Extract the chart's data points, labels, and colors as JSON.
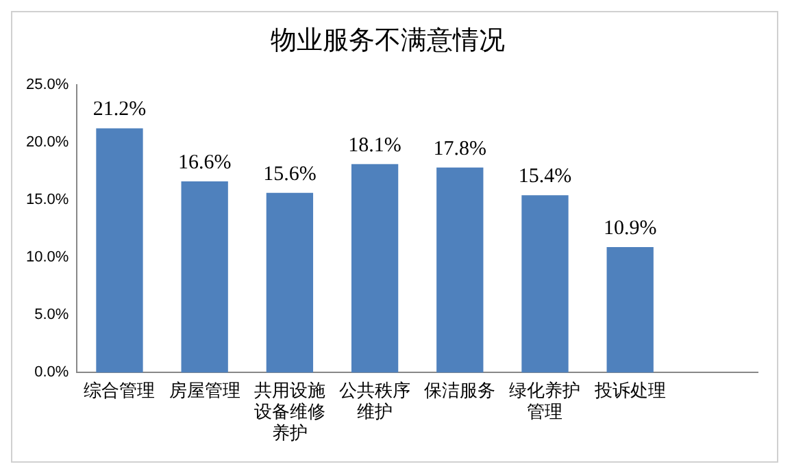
{
  "chart_data": {
    "type": "bar",
    "title": "物业服务不满意情况",
    "categories": [
      "综合管理",
      "房屋管理",
      "共用设施设备维修养护",
      "公共秩序维护",
      "保洁服务",
      "绿化养护管理",
      "投诉处理",
      null
    ],
    "values": [
      21.2,
      16.6,
      15.6,
      18.1,
      17.8,
      15.4,
      10.9,
      null
    ],
    "value_labels": [
      "21.2%",
      "16.6%",
      "15.6%",
      "18.1%",
      "17.8%",
      "15.4%",
      "10.9%",
      null
    ],
    "color": "#4f81bd",
    "ylim": [
      0,
      25
    ],
    "yticks": [
      {
        "value": 0,
        "label": "0.0%"
      },
      {
        "value": 5,
        "label": "5.0%"
      },
      {
        "value": 10,
        "label": "10.0%"
      },
      {
        "value": 15,
        "label": "15.0%"
      },
      {
        "value": 20,
        "label": "20.0%"
      },
      {
        "value": 25,
        "label": "25.0%"
      }
    ],
    "grid": false,
    "legend": false
  }
}
